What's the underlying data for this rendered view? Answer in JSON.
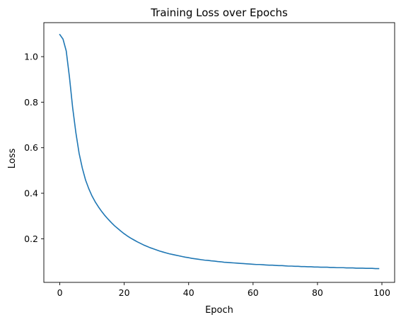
{
  "chart_data": {
    "type": "line",
    "title": "Training Loss over Epochs",
    "xlabel": "Epoch",
    "ylabel": "Loss",
    "xlim": [
      -4.95,
      103.95
    ],
    "ylim": [
      0.0085,
      1.1493
    ],
    "xticks": [
      0,
      20,
      40,
      60,
      80,
      100
    ],
    "yticks": [
      0.2,
      0.4,
      0.6,
      0.8,
      1.0
    ],
    "xtick_labels": [
      "0",
      "20",
      "40",
      "60",
      "80",
      "100"
    ],
    "ytick_labels": [
      "0.2",
      "0.4",
      "0.6",
      "0.8",
      "1.0"
    ],
    "grid": false,
    "series": [
      {
        "color": "#1f77b4",
        "x": [
          0,
          1,
          2,
          3,
          4,
          5,
          6,
          7,
          8,
          9,
          10,
          11,
          12,
          13,
          14,
          15,
          16,
          17,
          18,
          19,
          20,
          21,
          22,
          23,
          24,
          25,
          26,
          27,
          28,
          29,
          30,
          31,
          32,
          33,
          34,
          35,
          36,
          37,
          38,
          39,
          40,
          41,
          42,
          43,
          44,
          45,
          46,
          47,
          48,
          49,
          50,
          51,
          52,
          53,
          54,
          55,
          56,
          57,
          58,
          59,
          60,
          61,
          62,
          63,
          64,
          65,
          66,
          67,
          68,
          69,
          70,
          71,
          72,
          73,
          74,
          75,
          76,
          77,
          78,
          79,
          80,
          81,
          82,
          83,
          84,
          85,
          86,
          87,
          88,
          89,
          90,
          91,
          92,
          93,
          94,
          95,
          96,
          97,
          98,
          99
        ],
        "y": [
          1.097,
          1.077,
          1.025,
          0.91,
          0.775,
          0.665,
          0.575,
          0.51,
          0.458,
          0.42,
          0.388,
          0.362,
          0.34,
          0.32,
          0.302,
          0.286,
          0.271,
          0.257,
          0.245,
          0.233,
          0.222,
          0.212,
          0.203,
          0.195,
          0.187,
          0.18,
          0.173,
          0.167,
          0.161,
          0.156,
          0.151,
          0.146,
          0.142,
          0.138,
          0.134,
          0.131,
          0.128,
          0.125,
          0.122,
          0.119,
          0.117,
          0.114,
          0.112,
          0.11,
          0.108,
          0.106,
          0.105,
          0.103,
          0.102,
          0.1,
          0.099,
          0.097,
          0.096,
          0.095,
          0.094,
          0.093,
          0.092,
          0.091,
          0.09,
          0.089,
          0.088,
          0.087,
          0.087,
          0.086,
          0.085,
          0.084,
          0.084,
          0.083,
          0.082,
          0.082,
          0.081,
          0.08,
          0.08,
          0.079,
          0.079,
          0.078,
          0.078,
          0.077,
          0.077,
          0.076,
          0.076,
          0.075,
          0.075,
          0.075,
          0.074,
          0.074,
          0.073,
          0.073,
          0.073,
          0.072,
          0.072,
          0.072,
          0.071,
          0.071,
          0.071,
          0.07,
          0.07,
          0.07,
          0.069,
          0.069
        ]
      }
    ]
  }
}
